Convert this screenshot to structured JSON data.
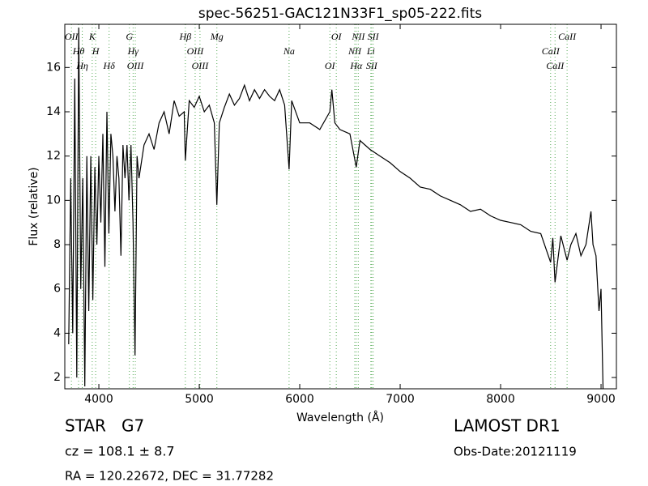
{
  "chart_data": {
    "type": "line",
    "title": "spec-56251-GAC121N33F1_sp05-222.fits",
    "x_label": "Wavelength (Å)",
    "y_label": "Flux (relative)",
    "color": "#000000",
    "line_color": "#55aa55",
    "xlim": [
      3661,
      9153
    ],
    "ylim": [
      1.49,
      17.95
    ],
    "xticks": [
      4000,
      5000,
      6000,
      7000,
      8000,
      9000
    ],
    "yticks": [
      2,
      4,
      6,
      8,
      10,
      12,
      14,
      16
    ],
    "x": [
      3700,
      3720,
      3740,
      3760,
      3780,
      3800,
      3820,
      3840,
      3860,
      3880,
      3900,
      3920,
      3940,
      3960,
      3980,
      4000,
      4020,
      4040,
      4060,
      4080,
      4100,
      4120,
      4140,
      4160,
      4180,
      4200,
      4220,
      4240,
      4260,
      4280,
      4300,
      4320,
      4340,
      4360,
      4380,
      4400,
      4450,
      4500,
      4550,
      4600,
      4650,
      4700,
      4750,
      4800,
      4850,
      4861,
      4900,
      4950,
      5000,
      5050,
      5100,
      5150,
      5175,
      5200,
      5250,
      5300,
      5350,
      5400,
      5450,
      5500,
      5550,
      5600,
      5650,
      5700,
      5750,
      5800,
      5850,
      5894,
      5920,
      6000,
      6100,
      6200,
      6300,
      6320,
      6350,
      6400,
      6500,
      6563,
      6600,
      6700,
      6800,
      6900,
      7000,
      7100,
      7200,
      7300,
      7400,
      7500,
      7600,
      7700,
      7800,
      7900,
      8000,
      8100,
      8200,
      8300,
      8400,
      8498,
      8520,
      8542,
      8600,
      8662,
      8700,
      8750,
      8800,
      8850,
      8900,
      8920,
      8950,
      8980,
      9000,
      9020
    ],
    "values": [
      3.5,
      11,
      4,
      15.5,
      2,
      17.8,
      6,
      11,
      1.6,
      12,
      5,
      12,
      5.5,
      11.5,
      8,
      12,
      9,
      13,
      7,
      14,
      8.5,
      13,
      12,
      9.5,
      12,
      11,
      7.5,
      12.5,
      11,
      12.5,
      10,
      12.5,
      9,
      3,
      12,
      11,
      12.5,
      13,
      12.3,
      13.5,
      14,
      13,
      14.5,
      13.8,
      14,
      11.8,
      14.5,
      14.2,
      14.7,
      14,
      14.3,
      13.5,
      9.8,
      13.5,
      14.2,
      14.8,
      14.3,
      14.6,
      15.2,
      14.5,
      15,
      14.6,
      15,
      14.7,
      14.5,
      15,
      14.3,
      11.4,
      14.5,
      13.5,
      13.5,
      13.2,
      14,
      15,
      13.5,
      13.2,
      13,
      11.5,
      12.7,
      12.3,
      12,
      11.7,
      11.3,
      11,
      10.6,
      10.5,
      10.2,
      10,
      9.8,
      9.5,
      9.6,
      9.3,
      9.1,
      9,
      8.9,
      8.6,
      8.5,
      7.2,
      8.3,
      6.3,
      8.4,
      7.3,
      8,
      8.5,
      7.5,
      8,
      9.5,
      8,
      7.5,
      5,
      6,
      1.5
    ],
    "lines": [
      {
        "x": 3727,
        "label": "OII"
      },
      {
        "x": 3798,
        "label": "Hθ"
      },
      {
        "x": 3835,
        "label": "Hη"
      },
      {
        "x": 3934,
        "label": "K"
      },
      {
        "x": 3968,
        "label": "H"
      },
      {
        "x": 4102,
        "label": "Hδ"
      },
      {
        "x": 4304,
        "label": "G"
      },
      {
        "x": 4341,
        "label": "Hγ"
      },
      {
        "x": 4363,
        "label": "OIII"
      },
      {
        "x": 4861,
        "label": "Hβ"
      },
      {
        "x": 4959,
        "label": "OIII"
      },
      {
        "x": 5007,
        "label": "OIII"
      },
      {
        "x": 5175,
        "label": "Mg"
      },
      {
        "x": 5894,
        "label": "Na"
      },
      {
        "x": 6300,
        "label": "OI"
      },
      {
        "x": 6364,
        "label": "OI"
      },
      {
        "x": 6548,
        "label": "NII"
      },
      {
        "x": 6563,
        "label": "Hα"
      },
      {
        "x": 6583,
        "label": "NII"
      },
      {
        "x": 6708,
        "label": "Li"
      },
      {
        "x": 6716,
        "label": "SII"
      },
      {
        "x": 6731,
        "label": "SII"
      },
      {
        "x": 8498,
        "label": "CaII"
      },
      {
        "x": 8542,
        "label": "CaII"
      },
      {
        "x": 8662,
        "label": "CaII"
      }
    ],
    "object_class": "STAR   G7",
    "survey": "LAMOST DR1",
    "redshift": "cz = 108.1 ± 8.7",
    "obs_date": "Obs-Date:20121119",
    "coords": "RA = 120.22672, DEC = 31.77282"
  }
}
